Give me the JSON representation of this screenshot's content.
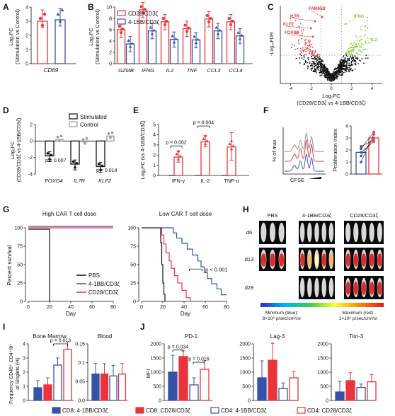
{
  "colors": {
    "red": "#e8343a",
    "blue": "#3651a8",
    "gray": "#999999",
    "green": "#8cc63f",
    "black": "#111111"
  },
  "chart_data": [
    {
      "panel": "A",
      "type": "bar",
      "ylabel": "Log₂FC (Stimulation vs Control)",
      "categories": [
        "CD69"
      ],
      "series": [
        {
          "name": "CD28/CD3ζ",
          "values": [
            3.0
          ]
        },
        {
          "name": "4-1BB/CD3ζ",
          "values": [
            3.1
          ]
        }
      ],
      "ylim": [
        0,
        4
      ],
      "yticks": [
        0,
        1,
        2,
        3,
        4
      ]
    },
    {
      "panel": "B",
      "type": "bar",
      "ylabel": "Log₂FC (Stimulation vs Control)",
      "categories": [
        "GZMB",
        "IFNG",
        "IL2",
        "TNF",
        "CCL3",
        "CCL4"
      ],
      "series": [
        {
          "name": "CD28/CD3ζ",
          "values": [
            6.0,
            9.5,
            7.4,
            6.2,
            7.9,
            7.4
          ]
        },
        {
          "name": "4-1BB/CD3ζ",
          "values": [
            3.5,
            5.8,
            4.3,
            4.2,
            5.8,
            4.9
          ]
        }
      ],
      "ylim": [
        0,
        10
      ],
      "yticks": [
        0,
        2,
        4,
        6,
        8,
        10
      ]
    },
    {
      "panel": "C",
      "type": "scatter",
      "xlabel": "Log₂FC (CD28/CD3ζ vs 4-1BB/CD3ζ)",
      "ylabel": "-Log₁₀FDR",
      "gene_labels_red": [
        "FAM65B",
        "IL7R",
        "KLF2",
        "FOXO4"
      ],
      "gene_labels_green": [
        "IFNG",
        "IL2"
      ],
      "xticks": [
        -4,
        -2,
        0,
        2,
        4
      ]
    },
    {
      "panel": "D",
      "type": "bar",
      "ylabel": "Log₂FC (CD28/CD3ζ vs 4-1BB/CD3ζ)",
      "categories": [
        "FOXO4",
        "IL7R",
        "KLF2"
      ],
      "series": [
        {
          "name": "Stimulated",
          "values": [
            -1.8,
            -2.8,
            -3.1
          ]
        },
        {
          "name": "Control",
          "values": [
            0.2,
            -0.1,
            0.6
          ]
        }
      ],
      "ylim": [
        -4,
        2
      ],
      "yticks": [
        -4,
        -2,
        0,
        2
      ],
      "annotations": [
        "p = 0.007",
        "p = 0.014"
      ]
    },
    {
      "panel": "E",
      "type": "bar",
      "ylabel": "Log₂FC (vs 4-1BB/CD3ζ)",
      "categories": [
        "IFN-γ",
        "IL-2",
        "TNF-α"
      ],
      "series": [
        {
          "name": "CD28/CD3ζ",
          "values": [
            1.8,
            3.3,
            2.8
          ]
        }
      ],
      "ylim": [
        0,
        5
      ],
      "yticks": [
        0,
        1,
        2,
        3,
        4,
        5
      ],
      "annotations": [
        "p = 0.002",
        "p = 0.004"
      ]
    },
    {
      "panel": "F",
      "type": "bar",
      "ylabel": "Proliferation Index",
      "xlabel_hist": "CFSE",
      "ylabel_hist": "% of max",
      "series": [
        {
          "name": "4-1BB/CD3ζ",
          "values": [
            1.8
          ]
        },
        {
          "name": "CD28/CD3ζ",
          "values": [
            3.0
          ]
        }
      ],
      "ylim": [
        0,
        4
      ],
      "yticks": [
        0,
        1,
        2,
        3,
        4
      ]
    },
    {
      "panel": "G",
      "type": "line",
      "subtitle_high": "High CAR T cell dose",
      "subtitle_low": "Low CAR T cell dose",
      "xlabel": "Day",
      "ylabel": "Percent survival",
      "xticks": [
        0,
        20,
        40,
        60,
        80
      ],
      "yticks": [
        0,
        25,
        50,
        75,
        100
      ],
      "legend": [
        "PBS",
        "4-1BB/CD3ζ",
        "CD28/CD3ζ"
      ],
      "annotation": "p < 0.001"
    },
    {
      "panel": "I",
      "type": "bar",
      "ylabel": "Frequency CD45⁺ CD4⁺/8⁺ of Singlets (%)",
      "subtitles": [
        "Bone Marrow",
        "Blood"
      ],
      "series": [
        {
          "name": "CD8: 4-1BB/CD3ζ",
          "values": [
            0.9,
            0.07
          ]
        },
        {
          "name": "CD8: CD28/CD3ζ",
          "values": [
            1.1,
            0.07
          ]
        },
        {
          "name": "CD4: 4-1BB/CD3ζ",
          "values": [
            2.5,
            0.065
          ]
        },
        {
          "name": "CD4: CD28/CD3ζ",
          "values": [
            3.6,
            0.07
          ]
        }
      ],
      "yticks_bm": [
        0,
        1,
        2,
        3,
        4
      ],
      "yticks_blood": [
        0.0,
        0.05,
        0.1,
        0.15
      ],
      "annotation": "p = 0.013"
    },
    {
      "panel": "J",
      "type": "bar",
      "ylabel": "MFI",
      "subtitles": [
        "PD-1",
        "Lag-3",
        "Tim-3"
      ],
      "series": [
        {
          "name": "CD8: 4-1BB/CD3ζ",
          "values": [
            1000,
            800,
            300
          ]
        },
        {
          "name": "CD8: CD28/CD3ζ",
          "values": [
            1550,
            1420,
            700
          ]
        },
        {
          "name": "CD4: 4-1BB/CD3ζ",
          "values": [
            550,
            420,
            460
          ]
        },
        {
          "name": "CD4: CD28/CD3ζ",
          "values": [
            1100,
            800,
            660
          ]
        }
      ],
      "yticks": [
        0,
        500,
        1000,
        1500,
        2000
      ],
      "annotations": [
        "p = 0.034",
        "p = 0.016"
      ]
    }
  ],
  "panel_letters": [
    "A",
    "B",
    "C",
    "D",
    "E",
    "F",
    "G",
    "H",
    "I",
    "J"
  ],
  "panel_h": {
    "columns": [
      "PBS",
      "4-1BB/CD3ζ",
      "CD28/CD3ζ"
    ],
    "rows": [
      "d6",
      "d13",
      "d28"
    ],
    "min_label": "Minimum (blue):",
    "min_value": "8×10⁶ p/sec/cm²/sr",
    "max_label": "Maximum (red):",
    "max_value": "1×10⁸ p/sec/cm²/sr"
  }
}
